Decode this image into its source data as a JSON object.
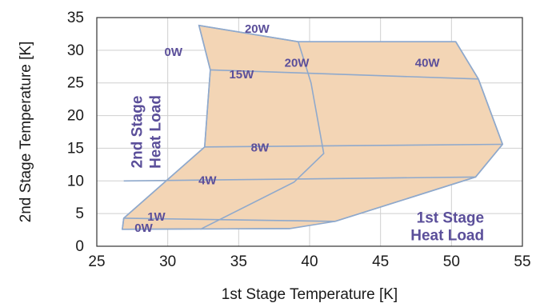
{
  "chart_data": {
    "type": "load-map",
    "xlabel": "1st Stage Temperature [K]",
    "ylabel": "2nd Stage Temperature [K]",
    "xlim": [
      25,
      55
    ],
    "ylim": [
      0,
      35
    ],
    "xticks": [
      "25",
      "30",
      "35",
      "40",
      "45",
      "50",
      "55"
    ],
    "yticks": [
      "0",
      "5",
      "10",
      "15",
      "20",
      "25",
      "30",
      "35"
    ],
    "grid": true,
    "colors": {
      "fill": "#f3d5b5",
      "line": "#8fa9cc",
      "label": "#5b4f9a"
    },
    "outline": [
      [
        32.2,
        33.8
      ],
      [
        39.2,
        31.3
      ],
      [
        50.3,
        31.3
      ],
      [
        51.9,
        25.6
      ],
      [
        53.6,
        15.6
      ],
      [
        51.7,
        10.6
      ],
      [
        41.8,
        3.8
      ],
      [
        38.6,
        2.7
      ],
      [
        26.8,
        2.6
      ],
      [
        26.9,
        4.3
      ],
      [
        32.6,
        15.2
      ],
      [
        33.0,
        27.0
      ]
    ],
    "second_stage_loads": [
      {
        "label": "0W",
        "points": [
          [
            26.8,
            2.6
          ],
          [
            38.6,
            2.7
          ]
        ]
      },
      {
        "label": "4W",
        "points": [
          [
            26.9,
            10.0
          ],
          [
            51.7,
            10.6
          ]
        ]
      },
      {
        "label": "8W",
        "points": [
          [
            32.6,
            15.2
          ],
          [
            53.6,
            15.6
          ]
        ]
      },
      {
        "label": "15W",
        "points": [
          [
            33.0,
            27.0
          ],
          [
            51.9,
            25.6
          ]
        ]
      },
      {
        "label": "20W",
        "points": [
          [
            32.2,
            33.8
          ],
          [
            39.2,
            31.3
          ],
          [
            50.3,
            31.3
          ]
        ]
      }
    ],
    "first_stage_loads": [
      {
        "label": "0W",
        "points": [
          [
            32.2,
            33.8
          ],
          [
            33.0,
            27.0
          ],
          [
            32.6,
            15.2
          ],
          [
            26.9,
            4.3
          ],
          [
            26.8,
            2.6
          ]
        ]
      },
      {
        "label": "1W",
        "points": [
          [
            26.9,
            4.3
          ],
          [
            41.8,
            3.8
          ]
        ]
      },
      {
        "label": "20W",
        "points": [
          [
            39.2,
            31.3
          ],
          [
            40.1,
            25.0
          ],
          [
            41.0,
            14.2
          ],
          [
            38.9,
            9.8
          ],
          [
            32.3,
            2.6
          ]
        ]
      },
      {
        "label": "40W",
        "points": [
          [
            50.3,
            31.3
          ],
          [
            51.9,
            25.6
          ],
          [
            53.6,
            15.6
          ],
          [
            51.7,
            10.6
          ],
          [
            41.8,
            3.8
          ]
        ]
      }
    ],
    "annotations": [
      {
        "text": "20W",
        "x": 36.3,
        "y": 32.7,
        "size": 15
      },
      {
        "text": "0W",
        "x": 30.4,
        "y": 29.1,
        "size": 15
      },
      {
        "text": "20W",
        "x": 39.1,
        "y": 27.5,
        "size": 15
      },
      {
        "text": "15W",
        "x": 35.2,
        "y": 25.7,
        "size": 15
      },
      {
        "text": "40W",
        "x": 48.3,
        "y": 27.5,
        "size": 15
      },
      {
        "text": "8W",
        "x": 36.5,
        "y": 14.5,
        "size": 15
      },
      {
        "text": "4W",
        "x": 32.8,
        "y": 9.5,
        "size": 15
      },
      {
        "text": "1W",
        "x": 29.2,
        "y": 3.9,
        "size": 15
      },
      {
        "text": "0W",
        "x": 28.3,
        "y": 2.2,
        "size": 15
      },
      {
        "text": "1st Stage",
        "x": 52.3,
        "y": 3.6,
        "size": 19,
        "anchor": "end"
      },
      {
        "text": "Heat Load",
        "x": 52.3,
        "y": 0.9,
        "size": 19,
        "anchor": "end"
      }
    ],
    "side_label": {
      "lines": [
        "2nd Stage",
        "Heat Load"
      ],
      "x": 28.2,
      "y": 17.5
    }
  }
}
